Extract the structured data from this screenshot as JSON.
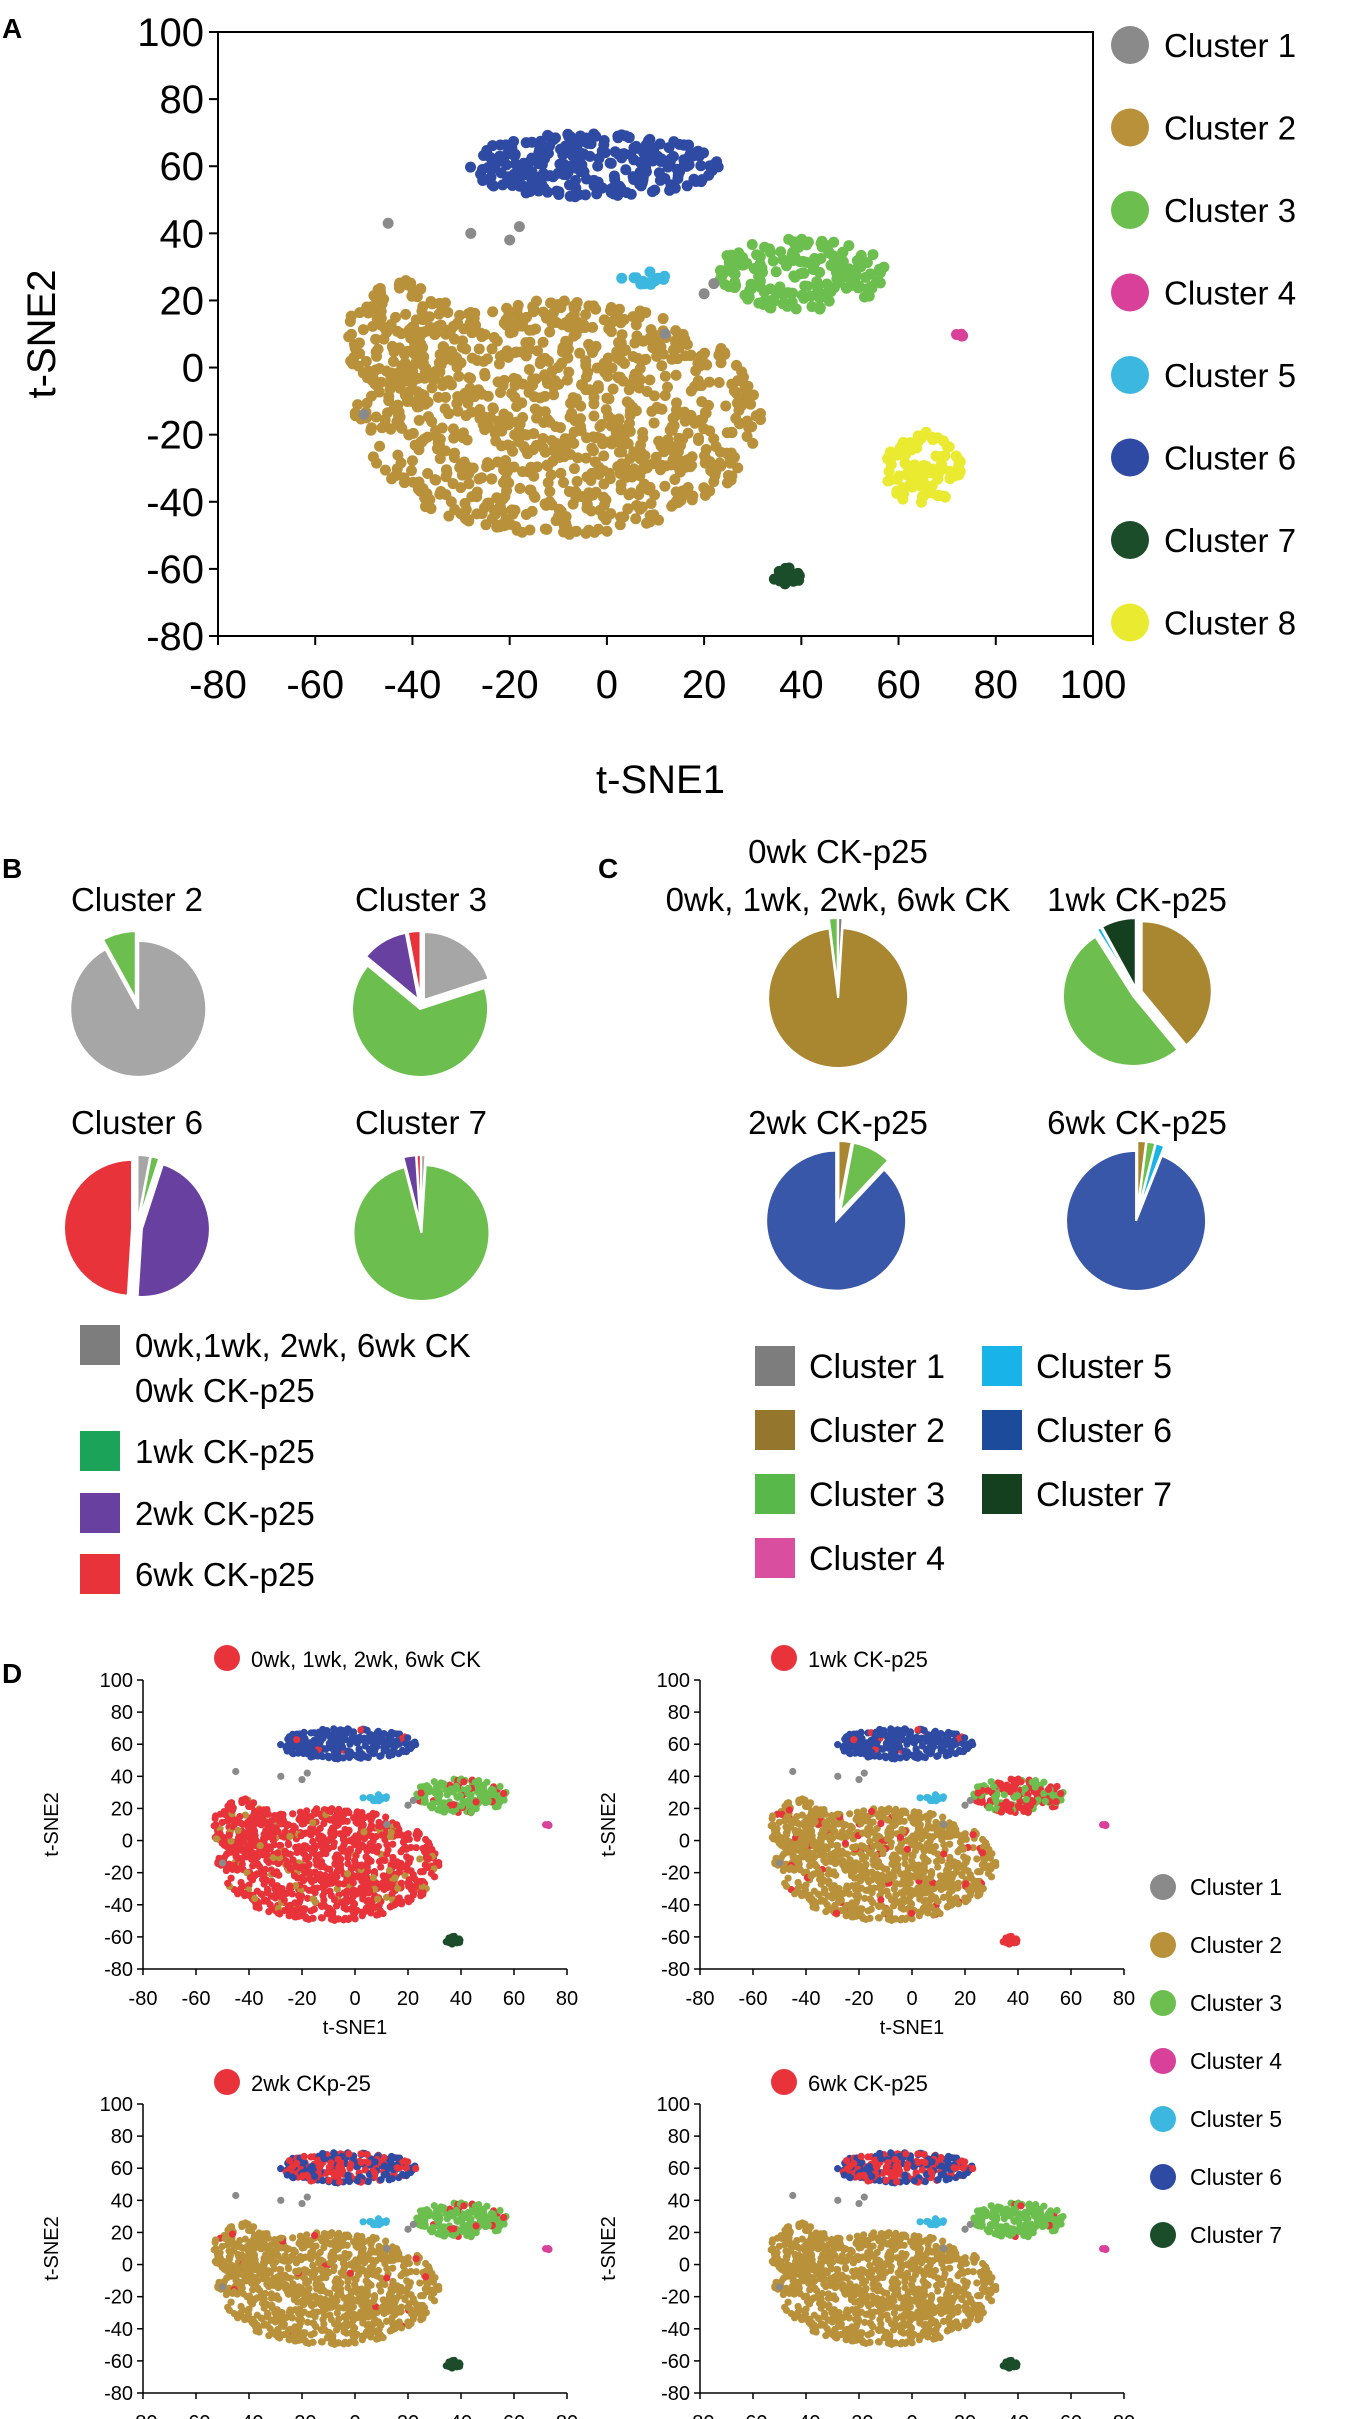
{
  "panel_letters": {
    "a": "A",
    "b": "B",
    "c": "C",
    "d": "D"
  },
  "clusters": [
    {
      "id": 1,
      "name": "Cluster 1",
      "color": "#8a8a8a"
    },
    {
      "id": 2,
      "name": "Cluster 2",
      "color": "#b8913a"
    },
    {
      "id": 3,
      "name": "Cluster 3",
      "color": "#6cbf4e"
    },
    {
      "id": 4,
      "name": "Cluster 4",
      "color": "#d8409a"
    },
    {
      "id": 5,
      "name": "Cluster 5",
      "color": "#3cb8e0"
    },
    {
      "id": 6,
      "name": "Cluster 6",
      "color": "#2e4aa3"
    },
    {
      "id": 7,
      "name": "Cluster 7",
      "color": "#1c4d2a"
    },
    {
      "id": 8,
      "name": "Cluster 8",
      "color": "#eaea30"
    }
  ],
  "chart_data": [
    {
      "panel": "A",
      "type": "scatter",
      "xlabel": "t-SNE1",
      "ylabel": "t-SNE2",
      "xlim": [
        -80,
        100
      ],
      "ylim": [
        -80,
        100
      ],
      "xticks": [
        -80,
        -60,
        -40,
        -20,
        0,
        20,
        40,
        60,
        80,
        100
      ],
      "yticks": [
        -80,
        -60,
        -40,
        -20,
        0,
        20,
        40,
        60,
        80,
        100
      ],
      "legend_position": "right",
      "series_names": [
        "Cluster 1",
        "Cluster 2",
        "Cluster 3",
        "Cluster 4",
        "Cluster 5",
        "Cluster 6",
        "Cluster 7",
        "Cluster 8"
      ],
      "regions": [
        {
          "cluster": 2,
          "shape": "blob",
          "cx": -10,
          "cy": -15,
          "rx": 42,
          "ry": 35,
          "n": 900
        },
        {
          "cluster": 2,
          "shape": "blob",
          "cx": -42,
          "cy": 8,
          "rx": 12,
          "ry": 18,
          "n": 140
        },
        {
          "cluster": 6,
          "shape": "blob",
          "cx": -3,
          "cy": 60,
          "rx": 26,
          "ry": 10,
          "n": 260
        },
        {
          "cluster": 3,
          "shape": "blob",
          "cx": 40,
          "cy": 28,
          "rx": 18,
          "ry": 11,
          "n": 170
        },
        {
          "cluster": 8,
          "shape": "blob",
          "cx": 65,
          "cy": -30,
          "rx": 8,
          "ry": 11,
          "n": 90
        },
        {
          "cluster": 7,
          "shape": "blob",
          "cx": 37,
          "cy": -62,
          "rx": 3,
          "ry": 2.5,
          "n": 25
        },
        {
          "cluster": 5,
          "shape": "blob",
          "cx": 8,
          "cy": 27,
          "rx": 5,
          "ry": 3,
          "n": 14
        },
        {
          "cluster": 4,
          "shape": "blob",
          "cx": 72,
          "cy": 10,
          "rx": 1.5,
          "ry": 1.5,
          "n": 6
        },
        {
          "cluster": 1,
          "shape": "points",
          "points": [
            [
              -45,
              43
            ],
            [
              -50,
              -14
            ],
            [
              -28,
              40
            ],
            [
              -20,
              38
            ],
            [
              -18,
              42
            ],
            [
              20,
              22
            ],
            [
              22,
              25
            ],
            [
              12,
              10
            ]
          ]
        }
      ]
    },
    {
      "panel": "B",
      "type": "pie",
      "legend": [
        {
          "label": "0wk,1wk, 2wk, 6wk CK",
          "label2": "0wk CK-p25",
          "color": "#7d7d7d"
        },
        {
          "label": "1wk CK-p25",
          "color": "#1ba35a"
        },
        {
          "label": "2wk CK-p25",
          "color": "#6840a0"
        },
        {
          "label": "6wk CK-p25",
          "color": "#e8333a"
        }
      ],
      "pies": [
        {
          "title": "Cluster 2",
          "slices": [
            {
              "value": 92,
              "color": "#a6a6a6"
            },
            {
              "value": 8,
              "color": "#6cbf4e"
            }
          ]
        },
        {
          "title": "Cluster 3",
          "slices": [
            {
              "value": 20,
              "color": "#a6a6a6"
            },
            {
              "value": 66,
              "color": "#6cbf4e"
            },
            {
              "value": 11,
              "color": "#6840a0"
            },
            {
              "value": 3,
              "color": "#e8333a"
            }
          ]
        },
        {
          "title": "Cluster 6",
          "slices": [
            {
              "value": 3,
              "color": "#a6a6a6"
            },
            {
              "value": 2,
              "color": "#6cbf4e"
            },
            {
              "value": 46,
              "color": "#6840a0"
            },
            {
              "value": 49,
              "color": "#e8333a"
            }
          ]
        },
        {
          "title": "Cluster 7",
          "slices": [
            {
              "value": 1,
              "color": "#a6a6a6"
            },
            {
              "value": 95,
              "color": "#6cbf4e"
            },
            {
              "value": 3,
              "color": "#6840a0"
            },
            {
              "value": 1,
              "color": "#e8333a"
            }
          ]
        }
      ]
    },
    {
      "panel": "C",
      "type": "pie",
      "legend": [
        {
          "label": "Cluster 1",
          "color": "#7d7d7d"
        },
        {
          "label": "Cluster 2",
          "color": "#94772d"
        },
        {
          "label": "Cluster 3",
          "color": "#58b84a"
        },
        {
          "label": "Cluster 4",
          "color": "#da4ea0"
        },
        {
          "label": "Cluster 5",
          "color": "#18b4e8"
        },
        {
          "label": "Cluster 6",
          "color": "#1d4b9b"
        },
        {
          "label": "Cluster 7",
          "color": "#15401f"
        }
      ],
      "pies": [
        {
          "title": "0wk, 1wk, 2wk, 6wk CK",
          "title2": "0wk CK-p25",
          "slices": [
            {
              "value": 1,
              "color": "#7d7d7d"
            },
            {
              "value": 97,
              "color": "#a98630"
            },
            {
              "value": 2,
              "color": "#6cbf4e"
            }
          ]
        },
        {
          "title": "1wk CK-p25",
          "slices": [
            {
              "value": 39,
              "color": "#a98630"
            },
            {
              "value": 52,
              "color": "#6cbf4e"
            },
            {
              "value": 1,
              "color": "#18b4e8"
            },
            {
              "value": 8,
              "color": "#15401f"
            }
          ]
        },
        {
          "title": "2wk CK-p25",
          "slices": [
            {
              "value": 3,
              "color": "#a98630"
            },
            {
              "value": 9,
              "color": "#6cbf4e"
            },
            {
              "value": 88,
              "color": "#3957a8"
            }
          ]
        },
        {
          "title": "6wk CK-p25",
          "slices": [
            {
              "value": 2,
              "color": "#a98630"
            },
            {
              "value": 2,
              "color": "#6cbf4e"
            },
            {
              "value": 2,
              "color": "#18b4e8"
            },
            {
              "value": 94,
              "color": "#3957a8"
            }
          ]
        }
      ]
    },
    {
      "panel": "D",
      "type": "scatter",
      "xlabel": "t-SNE1",
      "ylabel": "t-SNE2",
      "xlim": [
        -80,
        80
      ],
      "ylim": [
        -80,
        100
      ],
      "xticks": [
        -80,
        -60,
        -40,
        -20,
        0,
        20,
        40,
        60,
        80
      ],
      "yticks": [
        -80,
        -60,
        -40,
        -20,
        0,
        20,
        40,
        60,
        80,
        100
      ],
      "highlight_color": "#e8333a",
      "legend": [
        "Cluster 1",
        "Cluster 2",
        "Cluster 3",
        "Cluster 4",
        "Cluster 5",
        "Cluster 6",
        "Cluster 7"
      ],
      "subplots": [
        {
          "title": "0wk, 1wk, 2wk, 6wk CK",
          "highlight_fraction": {
            "2": 0.92,
            "3": 0.15,
            "6": 0.02,
            "7": 0.0
          },
          "show_xlabel": true
        },
        {
          "title": "1wk CK-p25",
          "highlight_fraction": {
            "2": 0.06,
            "3": 0.6,
            "6": 0.03,
            "7": 0.95
          },
          "show_xlabel": true
        },
        {
          "title": "2wk CKp-25",
          "highlight_fraction": {
            "2": 0.02,
            "3": 0.1,
            "6": 0.45,
            "7": 0.02
          },
          "show_xlabel": false
        },
        {
          "title": "6wk CK-p25",
          "highlight_fraction": {
            "2": 0.0,
            "3": 0.02,
            "6": 0.5,
            "7": 0.0
          },
          "show_xlabel": false
        }
      ]
    }
  ]
}
